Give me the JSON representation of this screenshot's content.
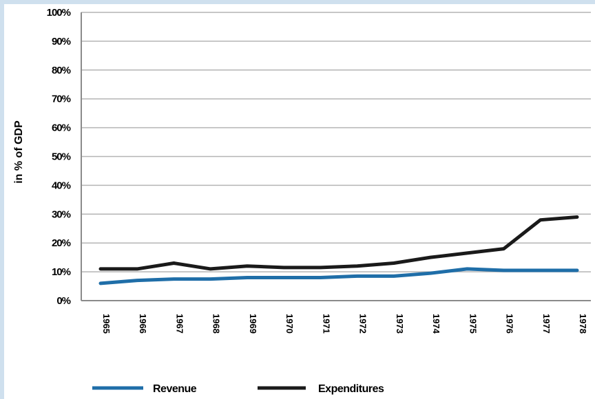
{
  "chart_data": {
    "type": "line",
    "title": "",
    "xlabel": "",
    "ylabel": "in % of GDP",
    "x": [
      "1965",
      "1966",
      "1967",
      "1968",
      "1969",
      "1970",
      "1971",
      "1972",
      "1973",
      "1974",
      "1975",
      "1976",
      "1977",
      "1978"
    ],
    "y_ticks": [
      "0%",
      "10%",
      "20%",
      "30%",
      "40%",
      "50%",
      "60%",
      "70%",
      "80%",
      "90%",
      "100%"
    ],
    "ylim": [
      0,
      100
    ],
    "grid": true,
    "legend": "bottom",
    "series": [
      {
        "name": "Revenue",
        "color": "#1f6ea8",
        "values": [
          6,
          7,
          7.5,
          7.5,
          8,
          8,
          8,
          8.5,
          8.5,
          9.5,
          11,
          10.5,
          10.5,
          10.5
        ]
      },
      {
        "name": "Expenditures",
        "color": "#1a1a1a",
        "values": [
          11,
          11,
          13,
          11,
          12,
          11.5,
          11.5,
          12,
          13,
          15,
          16.5,
          18,
          28,
          29
        ]
      }
    ]
  }
}
